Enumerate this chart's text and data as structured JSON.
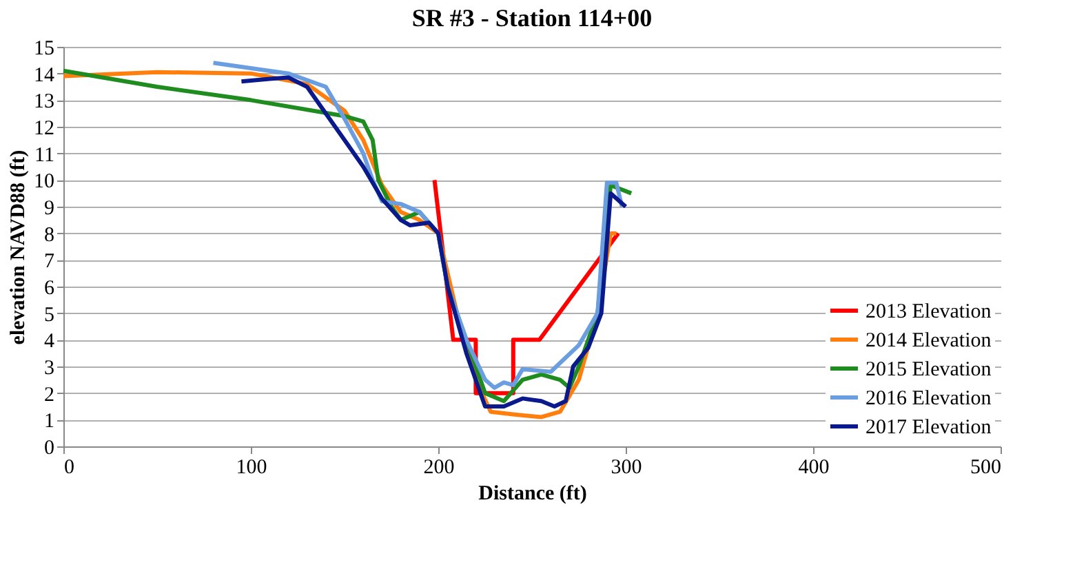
{
  "chart_data": {
    "type": "line",
    "title": "SR #3 - Station 114+00",
    "xlabel": "Distance (ft)",
    "ylabel": "elevation NAVD88 (ft)",
    "xlim": [
      0,
      500
    ],
    "xticks": [
      0,
      100,
      200,
      300,
      400,
      500
    ],
    "ylim": [
      0,
      15
    ],
    "yticks": [
      0,
      1,
      2,
      3,
      4,
      5,
      6,
      7,
      8,
      9,
      10,
      11,
      12,
      13,
      14,
      15
    ],
    "grid": "y",
    "legend": "bottom right",
    "marker": "none",
    "line_style": "solid",
    "series": [
      {
        "name": "2013 Elevation",
        "color": "#ff0000",
        "x": [
          198,
          208,
          220,
          220,
          240,
          240,
          254,
          296
        ],
        "values": [
          10,
          4,
          4,
          2,
          2,
          4,
          4,
          8
        ]
      },
      {
        "name": "2014 Elevation",
        "color": "#ff7f0e",
        "x": [
          0,
          50,
          100,
          130,
          150,
          160,
          170,
          180,
          190,
          200,
          210,
          220,
          228,
          240,
          255,
          265,
          275,
          285,
          292,
          295
        ],
        "values": [
          13.9,
          14.05,
          14,
          13.6,
          12.6,
          11.5,
          9.8,
          8.8,
          8.5,
          8,
          5,
          2.5,
          1.3,
          1.2,
          1.1,
          1.3,
          2.5,
          5,
          8,
          8
        ]
      },
      {
        "name": "2015 Elevation",
        "color": "#1f8c1f",
        "x": [
          0,
          50,
          100,
          150,
          160,
          165,
          168,
          175,
          180,
          190,
          200,
          205,
          215,
          225,
          235,
          245,
          255,
          265,
          270,
          275,
          285,
          292,
          303
        ],
        "values": [
          14.1,
          13.5,
          13,
          12.4,
          12.2,
          11.5,
          10,
          9,
          8.5,
          8.8,
          8,
          6,
          4,
          2,
          1.7,
          2.5,
          2.7,
          2.5,
          2.2,
          3,
          5,
          9.8,
          9.5
        ]
      },
      {
        "name": "2016 Elevation",
        "color": "#6a9ee0",
        "x": [
          80,
          120,
          140,
          150,
          160,
          165,
          170,
          180,
          190,
          200,
          205,
          215,
          225,
          230,
          235,
          240,
          245,
          260,
          275,
          285,
          290,
          295,
          298
        ],
        "values": [
          14.4,
          14,
          13.5,
          12.3,
          11,
          10,
          9.2,
          9.1,
          8.8,
          8,
          6,
          4,
          2.5,
          2.2,
          2.4,
          2.3,
          2.9,
          2.8,
          3.8,
          5,
          9.9,
          9.9,
          9
        ]
      },
      {
        "name": "2017 Elevation",
        "color": "#0a1a8c",
        "x": [
          95,
          110,
          120,
          130,
          140,
          160,
          170,
          180,
          185,
          195,
          200,
          205,
          215,
          225,
          235,
          245,
          255,
          262,
          268,
          272,
          280,
          287,
          292,
          300
        ],
        "values": [
          13.7,
          13.8,
          13.85,
          13.5,
          12.5,
          10.5,
          9.3,
          8.5,
          8.3,
          8.4,
          8,
          6,
          3.5,
          1.5,
          1.5,
          1.8,
          1.7,
          1.5,
          1.7,
          3,
          3.7,
          5,
          9.5,
          9
        ]
      }
    ]
  }
}
